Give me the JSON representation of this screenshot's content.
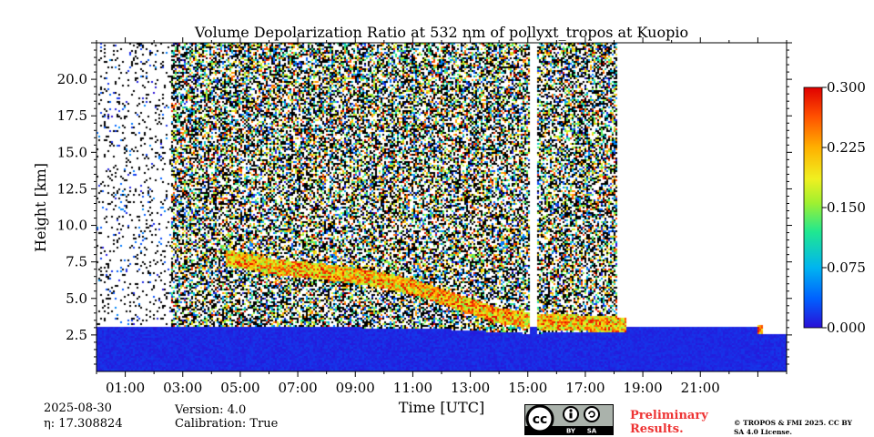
{
  "chart_data": {
    "type": "heatmap",
    "title": "Volume Depolarization Ratio at 532 nm of pollyxt_tropos at Kuopio",
    "xlabel": "Time [UTC]",
    "ylabel": "Height [km]",
    "xlim": [
      0,
      24
    ],
    "ylim": [
      0,
      22.5
    ],
    "x_ticks": [
      1,
      3,
      5,
      7,
      9,
      11,
      13,
      15,
      17,
      19,
      21
    ],
    "x_tick_labels": [
      "01:00",
      "03:00",
      "05:00",
      "07:00",
      "09:00",
      "11:00",
      "13:00",
      "15:00",
      "17:00",
      "19:00",
      "21:00"
    ],
    "y_ticks": [
      2.5,
      5.0,
      7.5,
      10.0,
      12.5,
      15.0,
      17.5,
      20.0
    ],
    "y_tick_labels": [
      "2.5",
      "5.0",
      "7.5",
      "10.0",
      "12.5",
      "15.0",
      "17.5",
      "20.0"
    ],
    "colorbar": {
      "min": 0.0,
      "max": 0.3,
      "ticks": [
        0.0,
        0.075,
        0.15,
        0.225,
        0.3
      ],
      "tick_labels": [
        "0.000",
        "0.075",
        "0.150",
        "0.225",
        "0.300"
      ],
      "colormap": [
        "#2a0fd6",
        "#0060ff",
        "#00b4f0",
        "#20e890",
        "#a0f030",
        "#f0f020",
        "#ffb000",
        "#ff5000",
        "#e00000"
      ]
    },
    "features": {
      "boundary_layer_top_km": [
        [
          0,
          3.5
        ],
        [
          3,
          3.5
        ],
        [
          6,
          3.4
        ],
        [
          9,
          3.4
        ],
        [
          12,
          3.3
        ],
        [
          15,
          3.0
        ],
        [
          18,
          3.1
        ],
        [
          21,
          3.0
        ],
        [
          24,
          3.0
        ]
      ],
      "aerosol_layer_km": [
        [
          4.5,
          7.8
        ],
        [
          6,
          7.2
        ],
        [
          8,
          6.8
        ],
        [
          9.5,
          6.4
        ],
        [
          11,
          5.8
        ],
        [
          12.5,
          4.8
        ],
        [
          14,
          3.8
        ],
        [
          15.5,
          3.4
        ],
        [
          17,
          3.3
        ],
        [
          19,
          3.1
        ],
        [
          21,
          3.0
        ],
        [
          23,
          2.6
        ]
      ],
      "data_gaps_utc": [
        [
          15.1,
          15.3
        ],
        [
          18.4,
          23.0
        ]
      ]
    }
  },
  "footer": {
    "date": "2025-08-30",
    "eta": "η: 17.308824",
    "version": "Version: 4.0",
    "calibration": "Calibration: True",
    "preliminary": "Preliminary Results.",
    "copyright": "© TROPOS & FMI 2025. CC BY SA 4.0 License.",
    "license_badge": {
      "cc": "cc",
      "by": "BY",
      "sa": "SA"
    }
  }
}
